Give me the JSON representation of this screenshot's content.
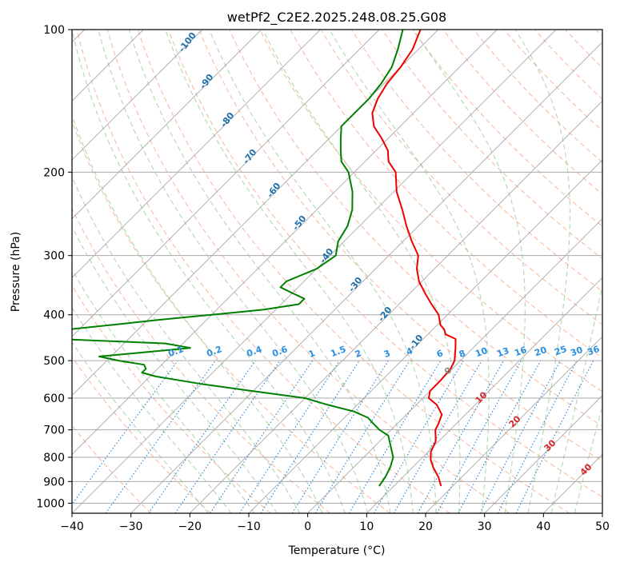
{
  "chart_data": {
    "type": "line",
    "title": "wetPf2_C2E2.2025.248.08.25.G08",
    "xlabel": "Temperature (°C)",
    "ylabel": "Pressure (hPa)",
    "xlim": [
      -40,
      50
    ],
    "ylim": [
      1050,
      100
    ],
    "y_scale": "log",
    "skew": true,
    "grid": true,
    "x_ticks": [
      -40,
      -30,
      -20,
      -10,
      0,
      10,
      20,
      30,
      40,
      50
    ],
    "y_ticks": [
      100,
      200,
      300,
      400,
      500,
      600,
      700,
      800,
      900,
      1000
    ],
    "colors": {
      "temperature": "#ee0000",
      "dewpoint": "#008000",
      "grid": "#aaaaaa",
      "isotherm": "#999999",
      "dry_adiabat": "#f4a582",
      "moist_adiabat": "#92c591",
      "mixing_ratio": "#1e82dc",
      "ann_dark_blue": "#1f6fa8",
      "ann_light_blue": "#2a8fe0",
      "ann_red": "#d62728",
      "ann_gray": "#888888"
    },
    "series": [
      {
        "key": "temperature",
        "p": [
          920,
          880,
          840,
          810,
          780,
          740,
          700,
          680,
          650,
          620,
          600,
          580,
          550,
          520,
          500,
          470,
          450,
          440,
          430,
          420,
          400,
          380,
          360,
          340,
          320,
          300,
          280,
          260,
          240,
          220,
          200,
          190,
          180,
          170,
          160,
          150,
          140,
          130,
          120,
          110,
          100
        ],
        "t": [
          18.0,
          16.0,
          13.5,
          11.8,
          10.5,
          9.5,
          7.5,
          7.0,
          6.0,
          3.5,
          1.0,
          0.0,
          0.0,
          -0.3,
          -1.0,
          -3.0,
          -4.5,
          -7.0,
          -8.0,
          -9.5,
          -11.5,
          -14.5,
          -17.5,
          -20.5,
          -23.0,
          -25.0,
          -28.5,
          -32.0,
          -35.5,
          -39.5,
          -43.0,
          -46.0,
          -48.0,
          -51.0,
          -54.5,
          -57.0,
          -58.5,
          -59.5,
          -60.0,
          -61.0,
          -63.0
        ]
      },
      {
        "key": "dewpoint",
        "p": [
          920,
          880,
          840,
          800,
          760,
          720,
          700,
          680,
          660,
          640,
          620,
          600,
          580,
          560,
          540,
          530,
          520,
          510,
          500,
          490,
          480,
          470,
          460,
          450,
          440,
          430,
          420,
          410,
          400,
          390,
          380,
          370,
          360,
          350,
          340,
          320,
          300,
          280,
          260,
          240,
          220,
          200,
          190,
          180,
          170,
          160,
          150,
          140,
          130,
          120,
          110,
          100
        ],
        "t": [
          7.5,
          7.0,
          6.2,
          5.0,
          2.8,
          0.5,
          -2.0,
          -4.0,
          -6.0,
          -9.5,
          -15.0,
          -20.0,
          -30.0,
          -40.0,
          -49.0,
          -52.0,
          -52.0,
          -53.0,
          -58.0,
          -62.0,
          -55.0,
          -48.0,
          -53.0,
          -72.0,
          -75.0,
          -72.0,
          -65.0,
          -58.0,
          -50.0,
          -42.0,
          -37.0,
          -37.0,
          -40.0,
          -43.0,
          -43.0,
          -40.0,
          -39.0,
          -41.0,
          -42.0,
          -44.0,
          -47.0,
          -51.0,
          -54.0,
          -56.0,
          -58.0,
          -60.0,
          -60.0,
          -60.0,
          -60.5,
          -61.5,
          -63.5,
          -66.0
        ]
      }
    ],
    "annotations": {
      "dry_adiabat_labels": [
        "10",
        "20",
        "30",
        "40"
      ],
      "moist_adiabat_labels": [
        "-100",
        "-90",
        "-80",
        "-70",
        "-60",
        "-50",
        "-40",
        "-30",
        "-20",
        "-10",
        "0"
      ],
      "mixing_ratio_labels": [
        "0.1",
        "0.2",
        "0.4",
        "0.6",
        "1",
        "1.5",
        "2",
        "3",
        "4",
        "6",
        "8",
        "10",
        "13",
        "16",
        "20",
        "25",
        "30",
        "36"
      ]
    }
  }
}
